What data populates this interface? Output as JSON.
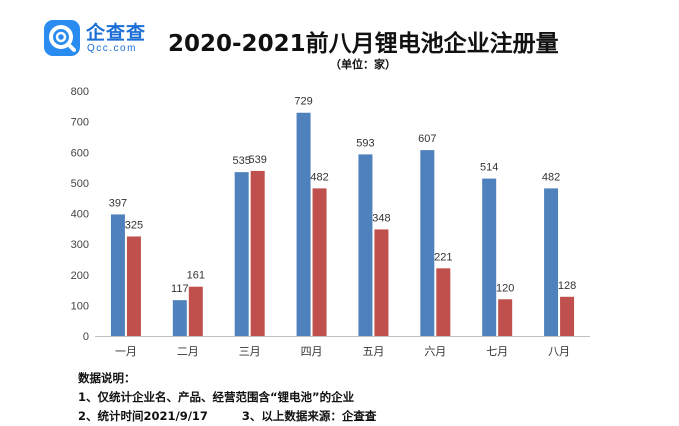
{
  "brand": {
    "name_cn": "企查查",
    "name_en": "Qcc.com",
    "logo_icon": "qcc-magnifier-logo-icon"
  },
  "header": {
    "title": "2020-2021前八月锂电池企业注册量",
    "subtitle": "（单位：家）"
  },
  "notes": {
    "heading": "数据说明：",
    "line1": "1、仅统计企业名、产品、经营范围含“锂电池”的企业",
    "line2a": "2、统计时间2021/9/17",
    "line2b": "3、以上数据来源：企查查"
  },
  "colors": {
    "series_2020": "#4f81bd",
    "series_2021": "#c0504d",
    "grid": "#d9d9d9",
    "axis": "#bfbfbf"
  },
  "chart_data": {
    "type": "bar",
    "title": "2020-2021前八月锂电池企业注册量",
    "subtitle": "（单位：家）",
    "xlabel": "",
    "ylabel": "",
    "ylim": [
      0,
      800
    ],
    "yticks": [
      0,
      100,
      200,
      300,
      400,
      500,
      600,
      700,
      800
    ],
    "grid": false,
    "legend": "none",
    "categories": [
      "一月",
      "二月",
      "三月",
      "四月",
      "五月",
      "六月",
      "七月",
      "八月"
    ],
    "series": [
      {
        "values": [
          397,
          117,
          535,
          729,
          593,
          607,
          514,
          482
        ]
      },
      {
        "values": [
          325,
          161,
          539,
          482,
          348,
          221,
          120,
          128
        ]
      }
    ]
  }
}
